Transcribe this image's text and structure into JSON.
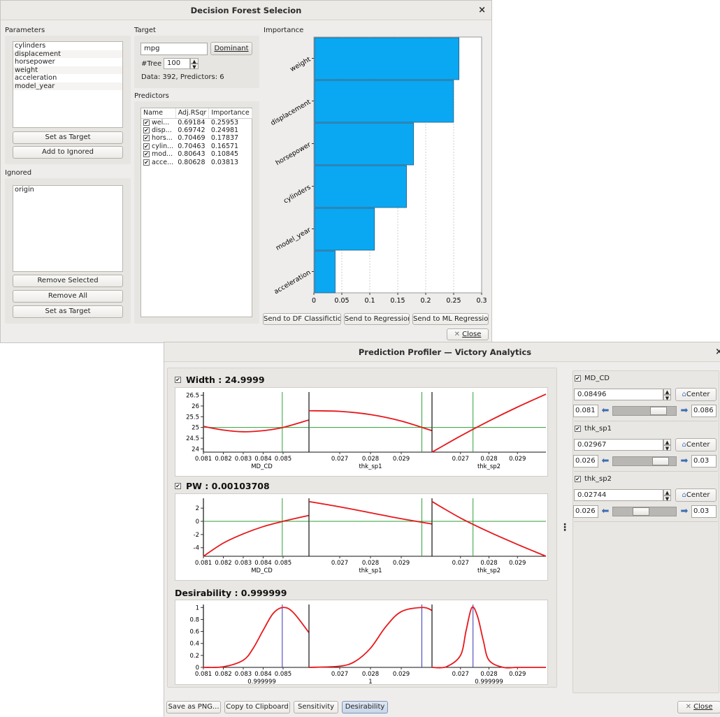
{
  "dialog": {
    "title": "Decision Forest Selecion",
    "parameters_label": "Parameters",
    "parameters": [
      "cylinders",
      "displacement",
      "horsepower",
      "weight",
      "acceleration",
      "model_year"
    ],
    "set_target_label": "Set as Target",
    "add_ignored_label": "Add to Ignored",
    "ignored_label": "Ignored",
    "ignored": [
      "origin"
    ],
    "remove_selected_label": "Remove Selected",
    "remove_all_label": "Remove All",
    "set_target2_label": "Set as Target",
    "target_label": "Target",
    "target_value": "mpg",
    "dominant_label": "Dominant",
    "tree_label": "#Tree",
    "tree_value": "100",
    "data_info": "Data: 392, Predictors: 6",
    "predictors_label": "Predictors",
    "pred_headers": [
      "Name",
      "Adj.RSqr",
      "Importance"
    ],
    "pred_rows": [
      {
        "name": "wei...",
        "rsq": "0.69184",
        "imp": "0.25953"
      },
      {
        "name": "disp...",
        "rsq": "0.69742",
        "imp": "0.24981"
      },
      {
        "name": "hors...",
        "rsq": "0.70469",
        "imp": "0.17837"
      },
      {
        "name": "cylin...",
        "rsq": "0.70463",
        "imp": "0.16571"
      },
      {
        "name": "mod...",
        "rsq": "0.80643",
        "imp": "0.10845"
      },
      {
        "name": "acce...",
        "rsq": "0.80628",
        "imp": "0.03813"
      }
    ],
    "importance_label": "Importance",
    "send_df_label": "Send to DF Classifiction",
    "send_reg_label": "Send to Regression",
    "send_ml_label": "Send to ML Regression",
    "close_label": "Close",
    "bar_color": "#0aa8f2"
  },
  "chart_data": [
    {
      "type": "bar",
      "orientation": "horizontal",
      "title": "Importance",
      "categories": [
        "weight",
        "displacement",
        "horsepower",
        "cylinders",
        "model_year",
        "acceleration"
      ],
      "values": [
        0.25953,
        0.24981,
        0.17837,
        0.16571,
        0.10845,
        0.03813
      ],
      "xlim": [
        0,
        0.3
      ],
      "xticks": [
        "0",
        "0.05",
        "0.1",
        "0.15",
        "0.2",
        "0.25",
        "0.3"
      ],
      "grid": true
    },
    {
      "type": "line",
      "title": "Width : 24.9999",
      "panels": [
        {
          "xlabel": "MD_CD",
          "xticks": [
            "0.081",
            "0.082",
            "0.083",
            "0.084",
            "0.085"
          ],
          "xlim": [
            0.081,
            0.0863
          ],
          "x": [
            0.081,
            0.082,
            0.083,
            0.084,
            0.085,
            0.0863
          ],
          "y": [
            25.05,
            24.88,
            24.8,
            24.85,
            25.0,
            25.35
          ],
          "current_x": 0.08496
        },
        {
          "xlabel": "thk_sp1",
          "xticks": [
            "0.027",
            "0.028",
            "0.029"
          ],
          "xlim": [
            0.026,
            0.03
          ],
          "x": [
            0.026,
            0.027,
            0.028,
            0.029,
            0.03
          ],
          "y": [
            25.78,
            25.75,
            25.6,
            25.3,
            24.85
          ],
          "current_x": 0.02967
        },
        {
          "xlabel": "thk_sp2",
          "xticks": [
            "0.027",
            "0.028",
            "0.029"
          ],
          "xlim": [
            0.026,
            0.03
          ],
          "x": [
            0.026,
            0.027,
            0.028,
            0.029,
            0.03
          ],
          "y": [
            23.85,
            24.6,
            25.3,
            25.95,
            26.55
          ],
          "current_x": 0.02744
        }
      ],
      "yticks": [
        "24",
        "24.5",
        "25",
        "25.5",
        "26",
        "26.5"
      ],
      "ylim": [
        23.85,
        26.65
      ],
      "y_current": 25.0
    },
    {
      "type": "line",
      "title": "PW : 0.00103708",
      "panels": [
        {
          "xlabel": "MD_CD",
          "xticks": [
            "0.081",
            "0.082",
            "0.083",
            "0.084",
            "0.085"
          ],
          "xlim": [
            0.081,
            0.0863
          ],
          "x": [
            0.081,
            0.082,
            0.083,
            0.084,
            0.085,
            0.0863
          ],
          "y": [
            -5.3,
            -3.3,
            -1.9,
            -0.8,
            0.0,
            0.9
          ],
          "current_x": 0.08496
        },
        {
          "xlabel": "thk_sp1",
          "xticks": [
            "0.027",
            "0.028",
            "0.029"
          ],
          "xlim": [
            0.026,
            0.03
          ],
          "x": [
            0.026,
            0.027,
            0.028,
            0.029,
            0.03
          ],
          "y": [
            3.0,
            2.2,
            1.3,
            0.4,
            -0.4
          ],
          "current_x": 0.02967
        },
        {
          "xlabel": "thk_sp2",
          "xticks": [
            "0.027",
            "0.028",
            "0.029"
          ],
          "xlim": [
            0.026,
            0.03
          ],
          "x": [
            0.026,
            0.027,
            0.028,
            0.029,
            0.03
          ],
          "y": [
            3.0,
            0.5,
            -1.6,
            -3.5,
            -5.3
          ],
          "current_x": 0.02744
        }
      ],
      "yticks": [
        "-4",
        "-2",
        "0",
        "2"
      ],
      "ylim": [
        -5.3,
        3.5
      ],
      "y_current": 0.0
    },
    {
      "type": "line",
      "title": "Desirability : 0.999999",
      "panels": [
        {
          "xlabel": "0.999999",
          "xticks": [
            "0.081",
            "0.082",
            "0.083",
            "0.084",
            "0.085"
          ],
          "xlim": [
            0.081,
            0.0863
          ],
          "x": [
            0.081,
            0.082,
            0.083,
            0.0835,
            0.084,
            0.0845,
            0.085,
            0.0855,
            0.0863
          ],
          "y": [
            0.0,
            0.01,
            0.12,
            0.32,
            0.62,
            0.9,
            1.0,
            0.92,
            0.58
          ],
          "current_x": 0.08496
        },
        {
          "xlabel": "1",
          "xticks": [
            "0.027",
            "0.028",
            "0.029"
          ],
          "xlim": [
            0.026,
            0.03
          ],
          "x": [
            0.026,
            0.027,
            0.0275,
            0.028,
            0.0285,
            0.029,
            0.0297,
            0.03
          ],
          "y": [
            0.0,
            0.02,
            0.1,
            0.32,
            0.68,
            0.93,
            1.0,
            0.95
          ],
          "current_x": 0.02967
        },
        {
          "xlabel": "0.999999",
          "xticks": [
            "0.027",
            "0.028",
            "0.029"
          ],
          "xlim": [
            0.026,
            0.03
          ],
          "x": [
            0.026,
            0.0265,
            0.027,
            0.0272,
            0.0274,
            0.0276,
            0.0278,
            0.028,
            0.0285,
            0.029,
            0.03
          ],
          "y": [
            0.0,
            0.01,
            0.2,
            0.62,
            1.0,
            0.85,
            0.45,
            0.12,
            0.0,
            0.0,
            0.0
          ],
          "current_x": 0.02744
        }
      ],
      "yticks": [
        "0",
        "0.2",
        "0.4",
        "0.6",
        "0.8",
        "1"
      ],
      "ylim": [
        0,
        1.05
      ],
      "y_current": 1.0
    }
  ],
  "profiler": {
    "title": "Prediction Profiler — Victory Analytics",
    "width_title": "Width : 24.9999",
    "pw_title": "PW : 0.00103708",
    "desir_title": "Desirability : 0.999999",
    "curve_color": "#e8171b",
    "ref_color": "#2f9e3a",
    "desir_ref_color": "#3535b8",
    "controls": [
      {
        "name": "MD_CD",
        "value": "0.08496",
        "center_label": "Center",
        "min": "0.081",
        "max": "0.086",
        "slider_pos": 0.8
      },
      {
        "name": "thk_sp1",
        "value": "0.02967",
        "center_label": "Center",
        "min": "0.026",
        "max": "0.03",
        "slider_pos": 0.85
      },
      {
        "name": "thk_sp2",
        "value": "0.02744",
        "center_label": "Center",
        "min": "0.026",
        "max": "0.03",
        "slider_pos": 0.4
      }
    ],
    "save_png_label": "Save as PNG...",
    "copy_label": "Copy to Clipboard",
    "sensitivity_label": "Sensitivity",
    "desirability_label": "Desirability",
    "close_label": "Close"
  }
}
